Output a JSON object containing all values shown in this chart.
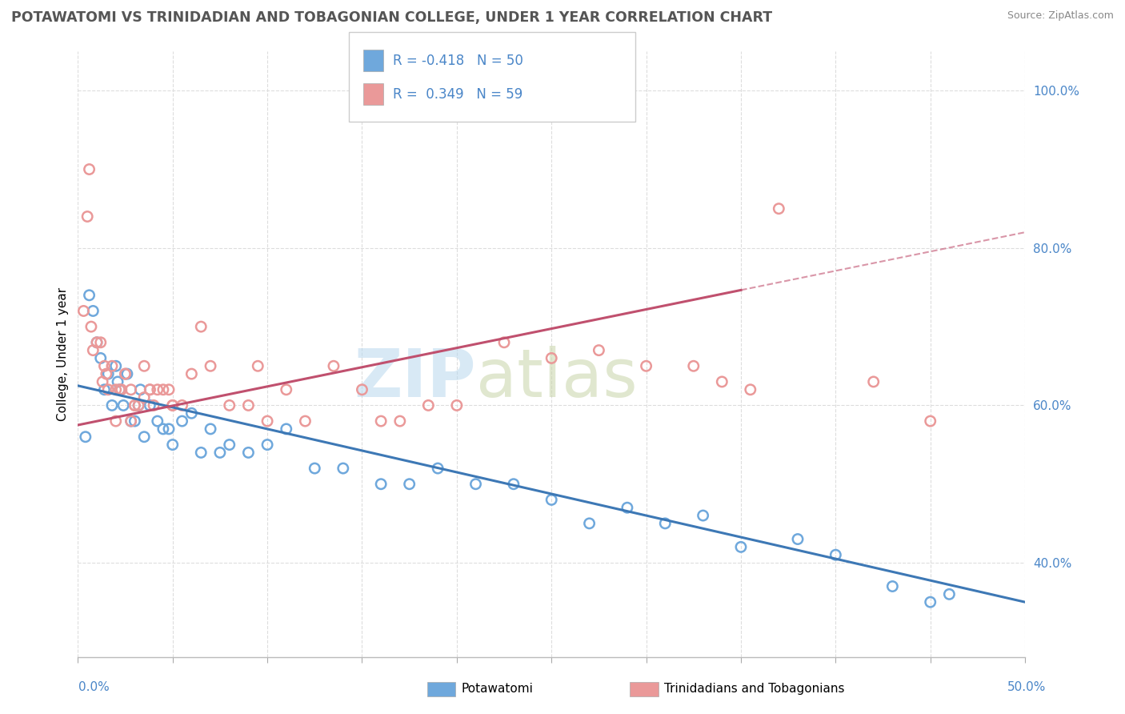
{
  "title": "POTAWATOMI VS TRINIDADIAN AND TOBAGONIAN COLLEGE, UNDER 1 YEAR CORRELATION CHART",
  "source_text": "Source: ZipAtlas.com",
  "ylabel": "College, Under 1 year",
  "xmin": 0.0,
  "xmax": 50.0,
  "ymin": 28.0,
  "ymax": 105.0,
  "yticks": [
    40.0,
    60.0,
    80.0,
    100.0
  ],
  "ytick_labels": [
    "40.0%",
    "60.0%",
    "80.0%",
    "100.0%"
  ],
  "blue_color": "#6fa8dc",
  "pink_color": "#ea9999",
  "blue_line_color": "#3d78b5",
  "pink_line_color": "#c0506e",
  "blue_scatter_x": [
    0.4,
    0.6,
    0.8,
    1.0,
    1.2,
    1.4,
    1.6,
    1.8,
    2.0,
    2.2,
    2.4,
    2.6,
    2.8,
    3.0,
    3.2,
    3.5,
    3.8,
    4.2,
    4.5,
    5.0,
    5.5,
    6.0,
    6.5,
    7.0,
    8.0,
    9.0,
    10.0,
    11.0,
    12.5,
    14.0,
    16.0,
    17.5,
    19.0,
    21.0,
    23.0,
    25.0,
    27.0,
    29.0,
    31.0,
    33.0,
    35.0,
    38.0,
    40.0,
    43.0,
    45.0,
    46.0,
    2.1,
    3.3,
    4.8,
    7.5
  ],
  "blue_scatter_y": [
    56,
    74,
    72,
    68,
    66,
    62,
    64,
    60,
    65,
    62,
    60,
    64,
    58,
    58,
    60,
    56,
    60,
    58,
    57,
    55,
    58,
    59,
    54,
    57,
    55,
    54,
    55,
    57,
    52,
    52,
    50,
    50,
    52,
    50,
    50,
    48,
    45,
    47,
    45,
    46,
    42,
    43,
    41,
    37,
    35,
    36,
    63,
    62,
    57,
    54
  ],
  "pink_scatter_x": [
    0.3,
    0.5,
    0.7,
    1.0,
    1.2,
    1.4,
    1.6,
    1.8,
    2.0,
    2.2,
    2.5,
    2.8,
    3.0,
    3.2,
    3.5,
    3.8,
    4.0,
    4.5,
    5.0,
    5.5,
    6.0,
    7.0,
    8.0,
    9.0,
    10.0,
    11.0,
    12.0,
    13.5,
    15.0,
    16.0,
    17.0,
    18.5,
    20.0,
    0.6,
    1.3,
    2.3,
    3.8,
    4.2,
    6.5,
    9.5,
    37.0,
    42.0,
    45.0,
    22.5,
    25.0,
    27.5,
    30.0,
    32.5,
    34.0,
    35.5,
    2.0,
    1.5,
    3.0,
    0.8,
    2.5,
    3.5,
    5.0,
    4.8,
    2.8
  ],
  "pink_scatter_y": [
    72,
    84,
    70,
    68,
    68,
    65,
    62,
    65,
    62,
    62,
    64,
    62,
    60,
    60,
    65,
    62,
    60,
    62,
    60,
    60,
    64,
    65,
    60,
    60,
    58,
    62,
    58,
    65,
    62,
    58,
    58,
    60,
    60,
    90,
    63,
    62,
    62,
    62,
    70,
    65,
    85,
    63,
    58,
    68,
    66,
    67,
    65,
    65,
    63,
    62,
    58,
    64,
    60,
    67,
    64,
    61,
    60,
    62,
    58
  ],
  "blue_line_x0": 0.0,
  "blue_line_y0": 62.5,
  "blue_line_x1": 50.0,
  "blue_line_y1": 35.0,
  "pink_line_x0": 0.0,
  "pink_line_y0": 57.5,
  "pink_line_x1": 50.0,
  "pink_line_y1": 82.0,
  "pink_solid_end": 35.0,
  "pink_dash_start": 35.0,
  "pink_dash_end": 50.0
}
